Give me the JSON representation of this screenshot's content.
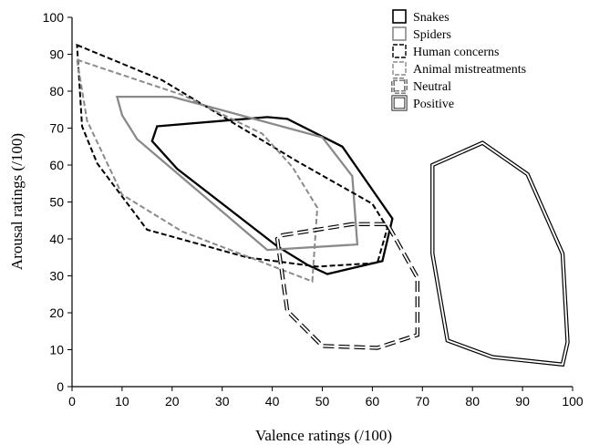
{
  "chart_data": {
    "type": "area",
    "xlabel": "Valence ratings (/100)",
    "ylabel": "Arousal ratings (/100)",
    "xlim": [
      0,
      100
    ],
    "ylim": [
      0,
      100
    ],
    "xticks": [
      0,
      10,
      20,
      30,
      40,
      50,
      60,
      70,
      80,
      90,
      100
    ],
    "yticks": [
      0,
      10,
      20,
      30,
      40,
      50,
      60,
      70,
      80,
      90,
      100
    ],
    "grid": false,
    "legend_position": "top-right",
    "series": [
      {
        "name": "Snakes",
        "style": "solid-black",
        "points": [
          [
            17,
            70.5
          ],
          [
            39,
            73
          ],
          [
            43,
            72.5
          ],
          [
            54,
            65
          ],
          [
            64,
            45.5
          ],
          [
            62,
            34
          ],
          [
            51,
            30.5
          ],
          [
            47,
            33
          ],
          [
            41,
            38
          ],
          [
            21,
            59
          ],
          [
            16,
            66.5
          ]
        ]
      },
      {
        "name": "Spiders",
        "style": "solid-gray",
        "points": [
          [
            9,
            78.5
          ],
          [
            20,
            78.5
          ],
          [
            50,
            67.5
          ],
          [
            56,
            57
          ],
          [
            57,
            38.5
          ],
          [
            39,
            37
          ],
          [
            13,
            67
          ],
          [
            10,
            73.5
          ]
        ]
      },
      {
        "name": "Human concerns",
        "style": "dashed-black",
        "points": [
          [
            1,
            92.5
          ],
          [
            18,
            83
          ],
          [
            45,
            61
          ],
          [
            60,
            49.5
          ],
          [
            63,
            43
          ],
          [
            61,
            33.5
          ],
          [
            49,
            32.5
          ],
          [
            35,
            35
          ],
          [
            15,
            42.5
          ],
          [
            5,
            60.5
          ],
          [
            2,
            70.5
          ]
        ]
      },
      {
        "name": "Animal mistreatments",
        "style": "dashed-gray",
        "points": [
          [
            1,
            88.5
          ],
          [
            22,
            79
          ],
          [
            38,
            68.5
          ],
          [
            44,
            59.5
          ],
          [
            49,
            48.5
          ],
          [
            48,
            28.5
          ],
          [
            22,
            42
          ],
          [
            10,
            52
          ],
          [
            3,
            72
          ]
        ]
      },
      {
        "name": "Neutral",
        "style": "long-dashed-double",
        "points": [
          [
            42,
            41
          ],
          [
            56,
            44
          ],
          [
            63,
            44
          ],
          [
            69,
            29.5
          ],
          [
            69,
            14
          ],
          [
            61,
            10.5
          ],
          [
            50,
            11
          ],
          [
            43,
            20.5
          ],
          [
            41,
            40
          ]
        ]
      },
      {
        "name": "Positive",
        "style": "solid-double",
        "points": [
          [
            72,
            60
          ],
          [
            82,
            66
          ],
          [
            91,
            57.5
          ],
          [
            98,
            36
          ],
          [
            99,
            12
          ],
          [
            98,
            6
          ],
          [
            84,
            8
          ],
          [
            75,
            12.5
          ],
          [
            72,
            36
          ]
        ]
      }
    ]
  }
}
